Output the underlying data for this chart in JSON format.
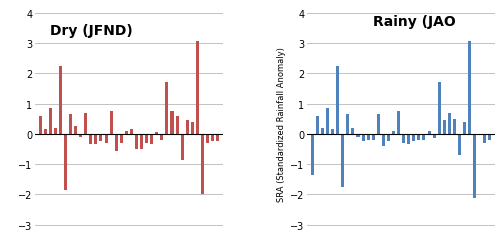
{
  "dry_values": [
    0.6,
    0.15,
    0.85,
    0.2,
    2.25,
    -1.85,
    0.65,
    0.25,
    -0.1,
    0.7,
    -0.35,
    -0.35,
    -0.25,
    -0.3,
    0.75,
    -0.55,
    -0.3,
    0.1,
    0.15,
    -0.5,
    -0.5,
    -0.3,
    -0.35,
    0.05,
    -0.2,
    1.7,
    0.75,
    0.6,
    -0.85,
    0.45,
    0.4,
    3.05,
    -2.0,
    -0.3,
    -0.25,
    -0.25
  ],
  "rainy_values": [
    -1.35,
    0.6,
    0.2,
    0.85,
    0.15,
    2.25,
    -1.75,
    0.65,
    0.2,
    -0.1,
    -0.25,
    -0.2,
    -0.2,
    0.65,
    -0.4,
    -0.25,
    0.1,
    0.75,
    -0.3,
    -0.35,
    -0.25,
    -0.2,
    -0.2,
    0.1,
    -0.15,
    1.7,
    0.45,
    0.7,
    0.5,
    -0.7,
    0.4,
    3.05,
    -2.1,
    -0.05,
    -0.3,
    -0.2
  ],
  "dry_title": "Dry (JFND)",
  "rainy_title": "Rainy (JAO",
  "ylabel": "SRA (Standardized Rainfall Anomaly)",
  "dry_color": "#C0504D",
  "rainy_color": "#4F81BD",
  "ylim": [
    -3.5,
    4.2
  ],
  "yticks": [
    -3,
    -2,
    -1,
    0,
    1,
    2,
    3,
    4
  ],
  "bg_color": "#FFFFFF",
  "grid_color": "#AAAAAA"
}
